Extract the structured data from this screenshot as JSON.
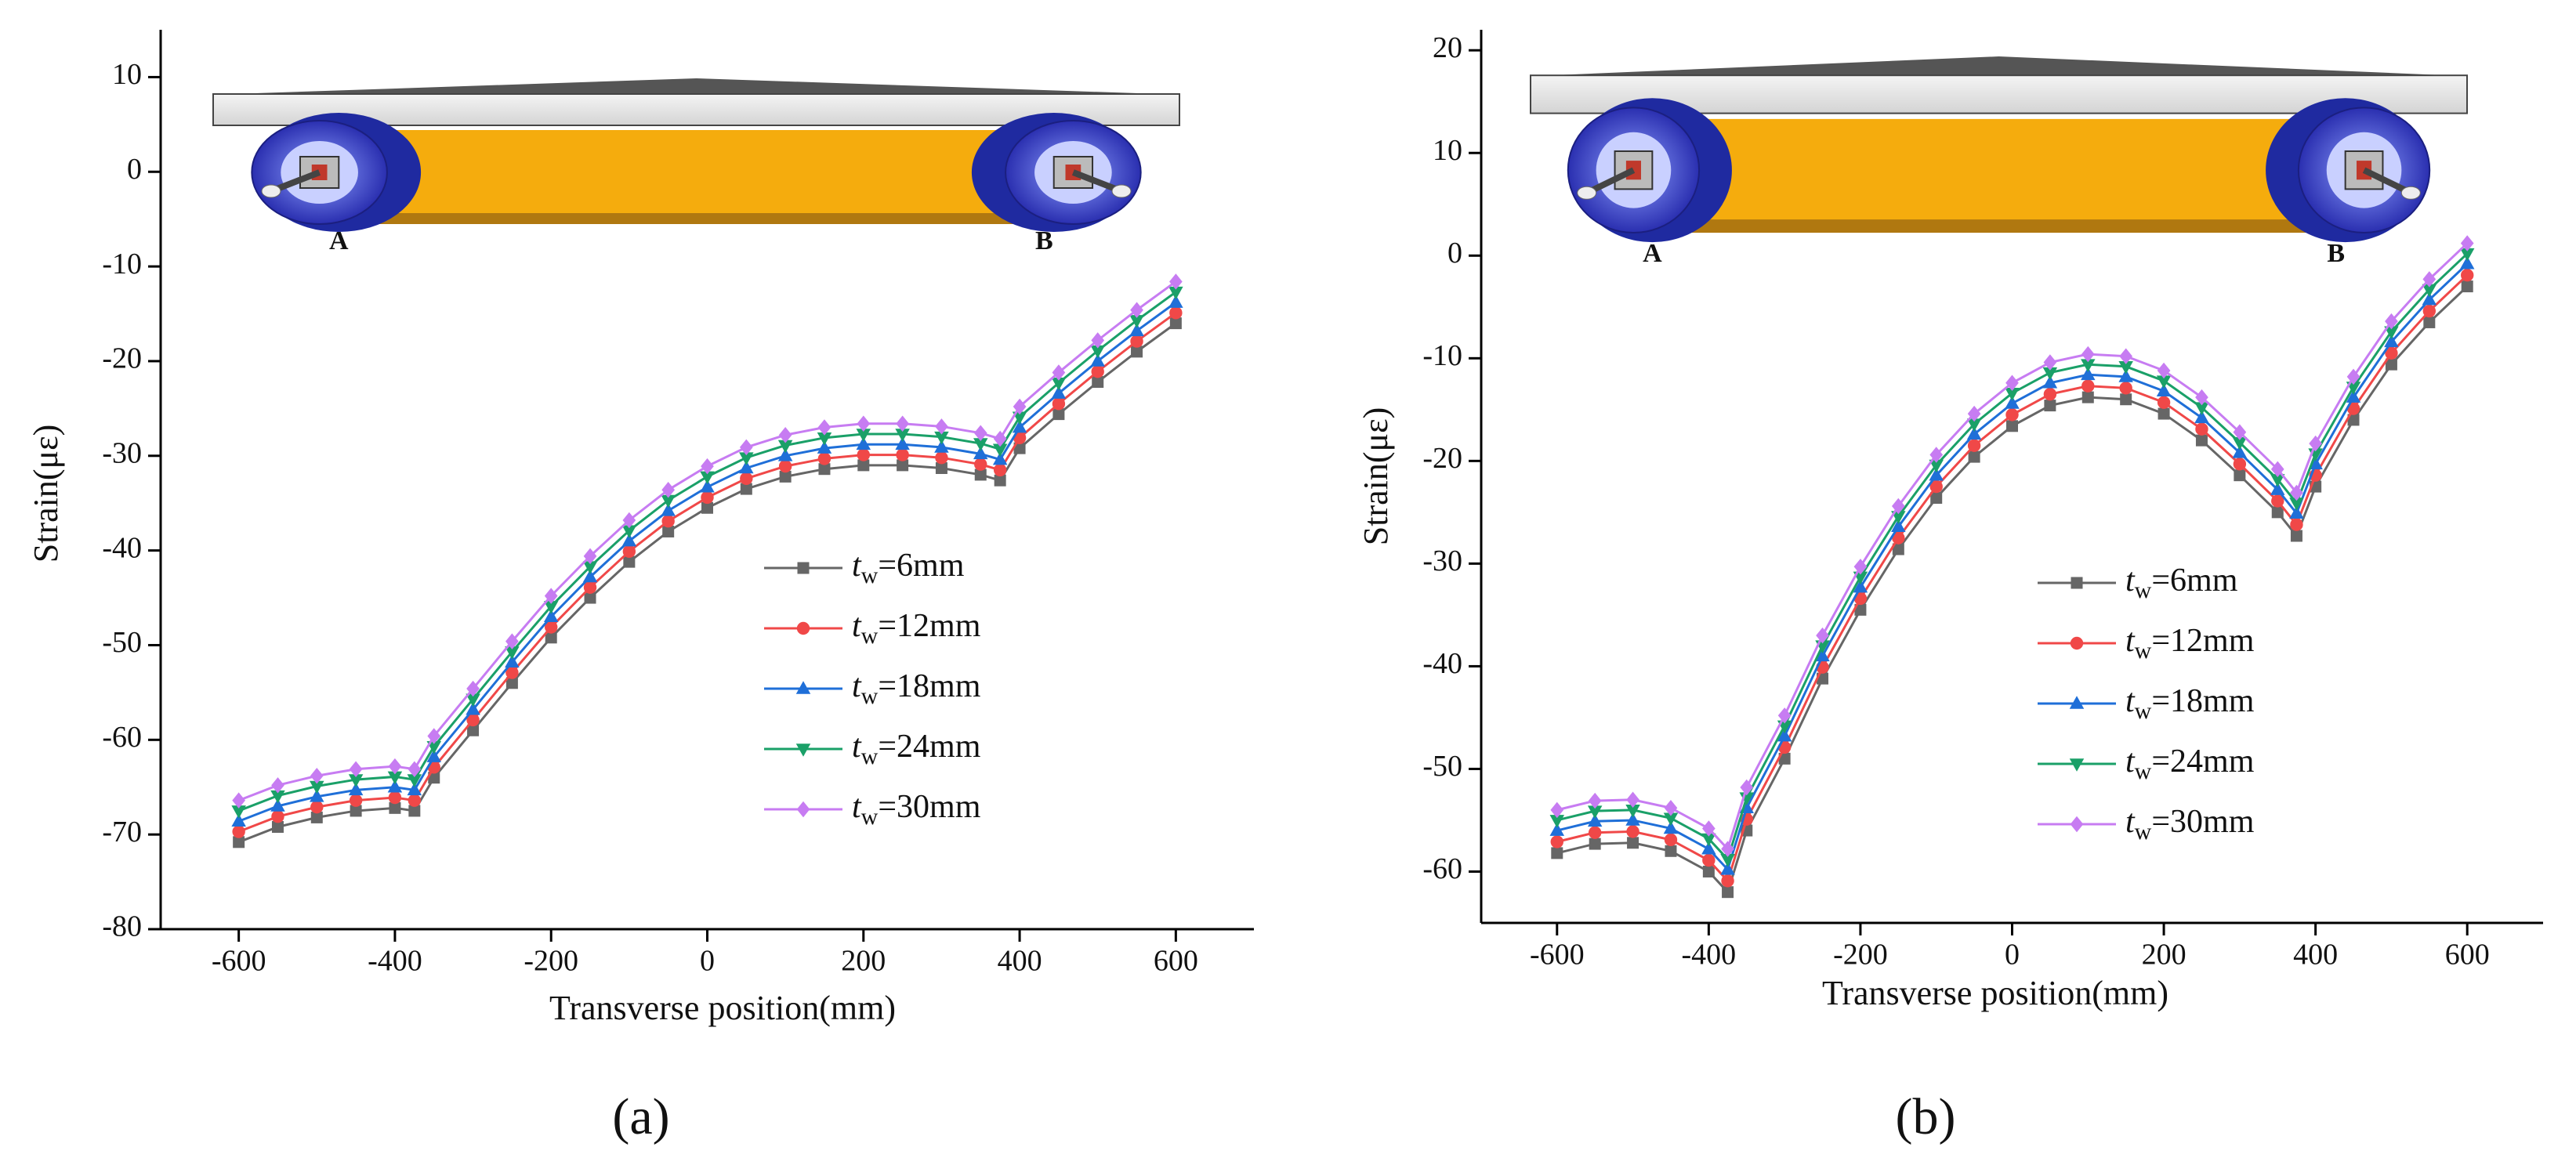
{
  "chart_data": [
    {
      "type": "line",
      "subplot_label": "(a)",
      "inset_labels": [
        "A",
        "B"
      ],
      "xlabel": "Transverse position(mm)",
      "ylabel": "Strain(με)",
      "xlim": [
        -700,
        700
      ],
      "xticks": [
        -600,
        -400,
        -200,
        0,
        200,
        400,
        600
      ],
      "ylim": [
        -80,
        15
      ],
      "yticks": [
        10,
        0,
        -10,
        -20,
        -30,
        -40,
        -50,
        -60,
        -70,
        -80
      ],
      "x": [
        -600,
        -550,
        -500,
        -450,
        -400,
        -375,
        -350,
        -300,
        -250,
        -200,
        -150,
        -100,
        -50,
        0,
        50,
        100,
        150,
        200,
        250,
        300,
        350,
        375,
        400,
        450,
        500,
        550,
        600
      ],
      "series": [
        {
          "name": "tw=6mm",
          "color": "#666666",
          "marker": "square",
          "values": [
            -70.8,
            -69.2,
            -68.2,
            -67.5,
            -67.2,
            -67.5,
            -64,
            -59,
            -54,
            -49.2,
            -45,
            -41.2,
            -38,
            -35.5,
            -33.5,
            -32.2,
            -31.4,
            -31,
            -31,
            -31.3,
            -32,
            -32.6,
            -29.2,
            -25.6,
            -22.2,
            -19,
            -16
          ]
        },
        {
          "name": "tw=12mm",
          "color": "#f04848",
          "marker": "circle",
          "values": [
            -69.7,
            -68.1,
            -67.1,
            -66.4,
            -66.1,
            -66.4,
            -62.9,
            -57.9,
            -52.9,
            -48.1,
            -43.9,
            -40.1,
            -36.9,
            -34.4,
            -32.4,
            -31.1,
            -30.3,
            -29.9,
            -29.9,
            -30.2,
            -30.9,
            -31.5,
            -28.1,
            -24.5,
            -21.1,
            -17.9,
            -14.9
          ]
        },
        {
          "name": "tw=18mm",
          "color": "#1f6fd8",
          "marker": "triangle-up",
          "values": [
            -68.6,
            -67,
            -66,
            -65.3,
            -65,
            -65.3,
            -61.8,
            -56.8,
            -51.8,
            -47,
            -42.8,
            -39,
            -35.8,
            -33.3,
            -31.3,
            -30,
            -29.2,
            -28.8,
            -28.8,
            -29.1,
            -29.8,
            -30.4,
            -27,
            -23.4,
            -20,
            -16.8,
            -13.8
          ]
        },
        {
          "name": "tw=24mm",
          "color": "#1aa068",
          "marker": "triangle-down",
          "values": [
            -67.5,
            -65.9,
            -64.9,
            -64.2,
            -63.9,
            -64.2,
            -60.7,
            -55.7,
            -50.7,
            -45.9,
            -41.7,
            -37.9,
            -34.7,
            -32.2,
            -30.2,
            -28.9,
            -28.1,
            -27.7,
            -27.7,
            -28,
            -28.7,
            -29.3,
            -25.9,
            -22.3,
            -18.9,
            -15.7,
            -12.7
          ]
        },
        {
          "name": "tw=30mm",
          "color": "#c77cf2",
          "marker": "diamond",
          "values": [
            -66.4,
            -64.8,
            -63.8,
            -63.1,
            -62.8,
            -63.1,
            -59.6,
            -54.6,
            -49.6,
            -44.8,
            -40.6,
            -36.8,
            -33.6,
            -31.1,
            -29.1,
            -27.8,
            -27,
            -26.6,
            -26.6,
            -26.9,
            -27.6,
            -28.2,
            -24.8,
            -21.2,
            -17.8,
            -14.6,
            -11.6
          ]
        }
      ]
    },
    {
      "type": "line",
      "subplot_label": "(b)",
      "inset_labels": [
        "A",
        "B"
      ],
      "xlabel": "Transverse position(mm)",
      "ylabel": "Strain(με)",
      "xlim": [
        -700,
        700
      ],
      "xticks": [
        -600,
        -400,
        -200,
        0,
        200,
        400,
        600
      ],
      "ylim": [
        -65,
        22
      ],
      "yticks": [
        20,
        10,
        0,
        -10,
        -20,
        -30,
        -40,
        -50,
        -60
      ],
      "x": [
        -600,
        -550,
        -500,
        -450,
        -400,
        -375,
        -350,
        -300,
        -250,
        -200,
        -150,
        -100,
        -50,
        0,
        50,
        100,
        150,
        200,
        250,
        300,
        350,
        375,
        400,
        450,
        500,
        550,
        600
      ],
      "series": [
        {
          "name": "tw=6mm",
          "color": "#666666",
          "marker": "square",
          "values": [
            -58.2,
            -57.3,
            -57.2,
            -58,
            -60,
            -62,
            -56,
            -49,
            -41.2,
            -34.5,
            -28.6,
            -23.6,
            -19.6,
            -16.6,
            -14.6,
            -13.8,
            -14,
            -15.4,
            -18,
            -21.4,
            -25,
            -27.3,
            -22.5,
            -16,
            -10.6,
            -6.5,
            -3
          ]
        },
        {
          "name": "tw=12mm",
          "color": "#f04848",
          "marker": "circle",
          "values": [
            -57.1,
            -56.2,
            -56.1,
            -56.9,
            -58.9,
            -60.9,
            -54.9,
            -47.9,
            -40.1,
            -33.4,
            -27.5,
            -22.5,
            -18.5,
            -15.5,
            -13.5,
            -12.7,
            -12.9,
            -14.3,
            -16.9,
            -20.3,
            -23.9,
            -26.2,
            -21.4,
            -14.9,
            -9.5,
            -5.4,
            -1.9
          ]
        },
        {
          "name": "tw=18mm",
          "color": "#1f6fd8",
          "marker": "triangle-up",
          "values": [
            -56,
            -55.1,
            -55,
            -55.8,
            -57.8,
            -59.8,
            -53.8,
            -46.8,
            -39,
            -32.3,
            -26.4,
            -21.4,
            -17.4,
            -14.4,
            -12.4,
            -11.6,
            -11.8,
            -13.2,
            -15.8,
            -19.2,
            -22.8,
            -25.1,
            -20.3,
            -13.8,
            -8.4,
            -4.3,
            -0.8
          ]
        },
        {
          "name": "tw=24mm",
          "color": "#1aa068",
          "marker": "triangle-down",
          "values": [
            -55,
            -54.1,
            -54,
            -54.8,
            -56.8,
            -58.8,
            -52.8,
            -45.8,
            -38,
            -31.3,
            -25.4,
            -20.4,
            -16.4,
            -13.4,
            -11.4,
            -10.6,
            -10.8,
            -12.2,
            -14.8,
            -18.2,
            -21.8,
            -24.1,
            -19.3,
            -12.8,
            -7.4,
            -3.3,
            0.2
          ]
        },
        {
          "name": "tw=30mm",
          "color": "#c77cf2",
          "marker": "diamond",
          "values": [
            -54,
            -53.1,
            -53,
            -53.8,
            -55.8,
            -57.8,
            -51.8,
            -44.8,
            -37,
            -30.3,
            -24.4,
            -19.4,
            -15.4,
            -12.4,
            -10.4,
            -9.6,
            -9.8,
            -11.2,
            -13.8,
            -17.2,
            -20.8,
            -23.1,
            -18.3,
            -11.8,
            -6.4,
            -2.3,
            1.2
          ]
        }
      ]
    }
  ]
}
